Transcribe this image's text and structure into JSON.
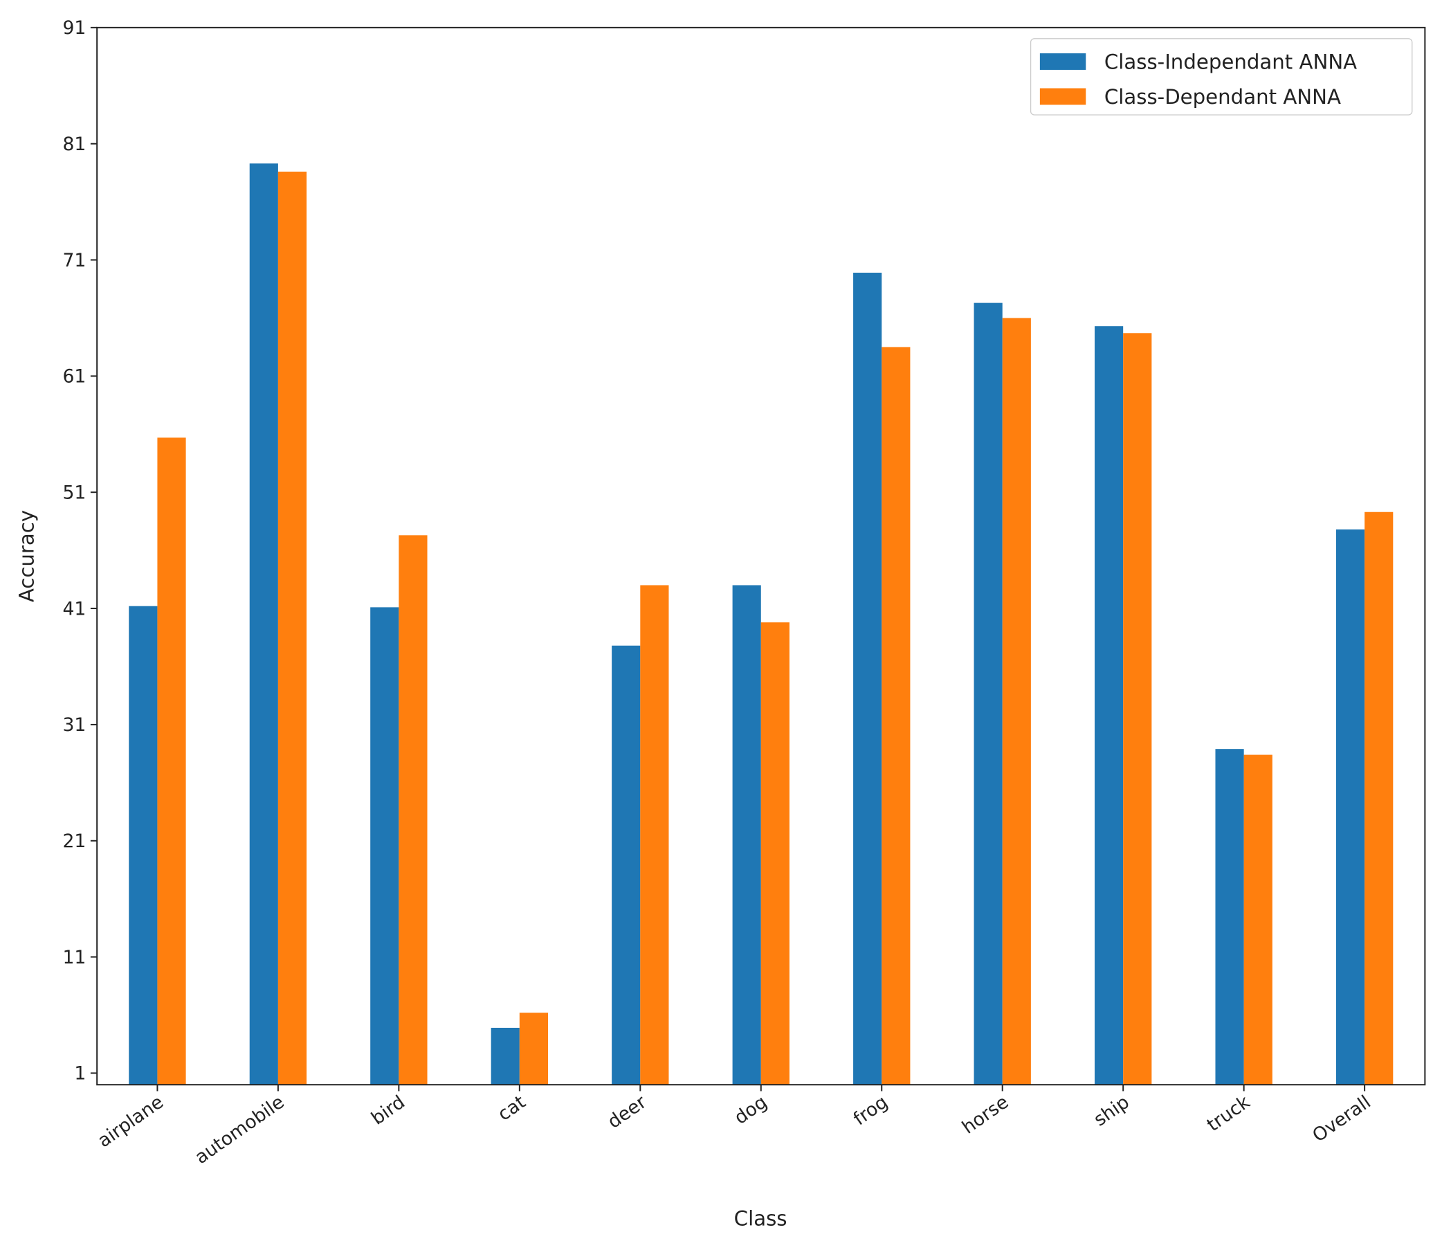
{
  "chart_data": {
    "type": "bar",
    "x_label": "Class",
    "y_label": "Accuracy",
    "categories": [
      "airplane",
      "automobile",
      "bird",
      "cat",
      "deer",
      "dog",
      "frog",
      "horse",
      "ship",
      "truck",
      "Overall"
    ],
    "series": [
      {
        "name": "Class-Independant ANNA",
        "color": "#1f77b4",
        "values": [
          41.2,
          79.3,
          41.1,
          4.9,
          37.8,
          43.0,
          69.9,
          67.3,
          65.3,
          28.9,
          47.8
        ]
      },
      {
        "name": "Class-Dependant ANNA",
        "color": "#ff7f0e",
        "values": [
          55.7,
          78.6,
          47.3,
          6.2,
          43.0,
          39.8,
          63.5,
          66.0,
          64.7,
          28.4,
          49.3
        ]
      }
    ],
    "ylim": [
      0,
      91
    ],
    "yticks": [
      1,
      11,
      21,
      31,
      41,
      51,
      61,
      71,
      81,
      91
    ],
    "grid": false,
    "legend": "upper right"
  }
}
